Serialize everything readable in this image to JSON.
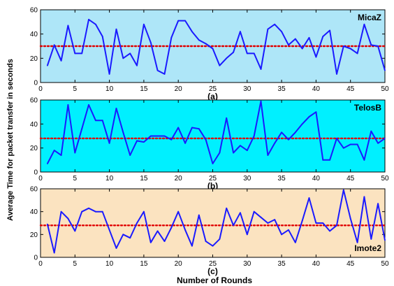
{
  "figure": {
    "ylabel": "Average Time for packet transfer in seconds",
    "xlabel": "Number of Rounds"
  },
  "colors": {
    "line": "#1a1aff",
    "mean": "#e00000",
    "panel_a_bg": "#aee6f8",
    "panel_b_bg": "#00f0ff",
    "panel_c_bg": "#fbe3c0"
  },
  "chart_data": [
    {
      "type": "line",
      "panel_label": "(a)",
      "annotation": "MicaZ",
      "annotation_position": "top-right",
      "xlim": [
        0,
        50
      ],
      "ylim": [
        0,
        60
      ],
      "xticks": [
        0,
        5,
        10,
        15,
        20,
        25,
        30,
        35,
        40,
        45,
        50
      ],
      "yticks": [
        0,
        20,
        40,
        60
      ],
      "x": [
        1,
        2,
        3,
        4,
        5,
        6,
        7,
        8,
        9,
        10,
        11,
        12,
        13,
        14,
        15,
        16,
        17,
        18,
        19,
        20,
        21,
        22,
        23,
        24,
        25,
        26,
        27,
        28,
        29,
        30,
        31,
        32,
        33,
        34,
        35,
        36,
        37,
        38,
        39,
        40,
        41,
        42,
        43,
        44,
        45,
        46,
        47,
        48,
        49,
        50
      ],
      "series": [
        {
          "values": [
            14,
            31,
            18,
            47,
            24,
            24,
            52,
            48,
            38,
            7,
            44,
            20,
            24,
            14,
            48,
            33,
            10,
            7,
            37,
            51,
            51,
            42,
            35,
            32,
            28,
            14,
            20,
            25,
            42,
            24,
            24,
            11,
            44,
            48,
            42,
            31,
            36,
            28,
            37,
            21,
            38,
            43,
            7,
            30,
            28,
            24,
            48,
            31,
            30,
            10
          ]
        }
      ],
      "mean_line": 30,
      "grid": false
    },
    {
      "type": "line",
      "panel_label": "(b)",
      "annotation": "TelosB",
      "annotation_position": "top-right",
      "xlim": [
        0,
        50
      ],
      "ylim": [
        0,
        60
      ],
      "xticks": [
        0,
        5,
        10,
        15,
        20,
        25,
        30,
        35,
        40,
        45,
        50
      ],
      "yticks": [
        0,
        20,
        40,
        60
      ],
      "x": [
        1,
        2,
        3,
        4,
        5,
        6,
        7,
        8,
        9,
        10,
        11,
        12,
        13,
        14,
        15,
        16,
        17,
        18,
        19,
        20,
        21,
        22,
        23,
        24,
        25,
        26,
        27,
        28,
        29,
        30,
        31,
        32,
        33,
        34,
        35,
        36,
        37,
        38,
        39,
        40,
        41,
        42,
        43,
        44,
        45,
        46,
        47,
        48,
        49,
        50
      ],
      "series": [
        {
          "values": [
            7,
            18,
            14,
            56,
            16,
            36,
            56,
            43,
            43,
            24,
            53,
            33,
            14,
            26,
            25,
            30,
            30,
            30,
            27,
            37,
            24,
            37,
            36,
            27,
            7,
            16,
            45,
            16,
            22,
            18,
            30,
            59,
            14,
            24,
            33,
            27,
            33,
            40,
            46,
            50,
            10,
            10,
            28,
            20,
            23,
            23,
            10,
            34,
            24,
            28
          ]
        }
      ],
      "mean_line": 28,
      "grid": false
    },
    {
      "type": "line",
      "panel_label": "(c)",
      "annotation": "Imote2",
      "annotation_position": "bottom-right",
      "xlim": [
        0,
        50
      ],
      "ylim": [
        0,
        60
      ],
      "xticks": [
        0,
        5,
        10,
        15,
        20,
        25,
        30,
        35,
        40,
        45,
        50
      ],
      "yticks": [
        0,
        20,
        40,
        60
      ],
      "x": [
        1,
        2,
        3,
        4,
        5,
        6,
        7,
        8,
        9,
        10,
        11,
        12,
        13,
        14,
        15,
        16,
        17,
        18,
        19,
        20,
        21,
        22,
        23,
        24,
        25,
        26,
        27,
        28,
        29,
        30,
        31,
        32,
        33,
        34,
        35,
        36,
        37,
        38,
        39,
        40,
        41,
        42,
        43,
        44,
        45,
        46,
        47,
        48,
        49,
        50
      ],
      "series": [
        {
          "values": [
            29,
            4,
            40,
            34,
            23,
            40,
            43,
            40,
            40,
            24,
            8,
            20,
            17,
            30,
            40,
            13,
            23,
            14,
            26,
            40,
            24,
            10,
            37,
            14,
            10,
            16,
            43,
            28,
            39,
            20,
            40,
            35,
            30,
            33,
            20,
            24,
            13,
            32,
            52,
            30,
            30,
            23,
            28,
            59,
            34,
            13,
            53,
            16,
            47,
            15
          ]
        }
      ],
      "mean_line": 28,
      "grid": false
    }
  ]
}
